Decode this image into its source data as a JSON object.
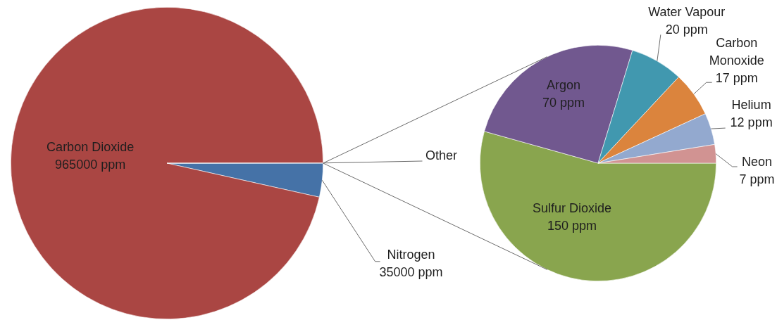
{
  "chart_data": [
    {
      "type": "pie",
      "categories": [
        "Nitrogen",
        "Carbon Dioxide",
        "Other"
      ],
      "values": [
        35000,
        965000,
        276
      ],
      "colors": [
        "#4572a7",
        "#aa4643",
        "#aa4643"
      ],
      "value_labels": [
        "35000 ppm",
        "965000 ppm",
        null
      ]
    },
    {
      "type": "pie",
      "categories": [
        "Sulfur Dioxide",
        "Argon",
        "Water Vapour",
        "Carbon Monoxide",
        "Helium",
        "Neon"
      ],
      "values": [
        150,
        70,
        20,
        17,
        12,
        7
      ],
      "colors": [
        "#89a54e",
        "#71588f",
        "#4198af",
        "#db843d",
        "#93a9cf",
        "#d19392"
      ],
      "value_labels": [
        "150 ppm",
        "70 ppm",
        "20 ppm",
        "17 ppm",
        "12 ppm",
        "7 ppm"
      ]
    }
  ]
}
